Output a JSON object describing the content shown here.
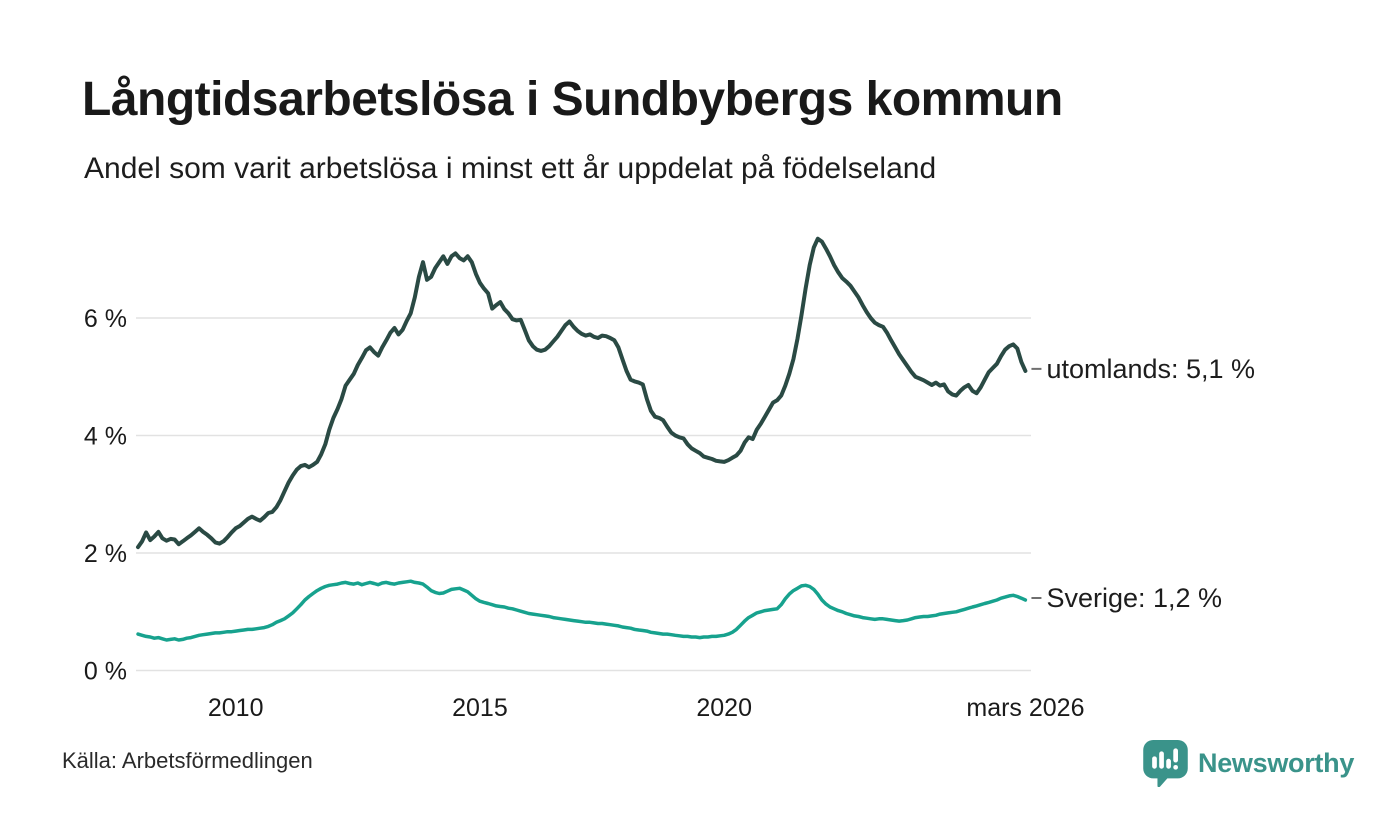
{
  "header": {
    "title": "Långtidsarbetslösa i Sundbybergs kommun",
    "subtitle": "Andel som varit arbetslösa i minst ett år uppdelat på födelseland"
  },
  "chart_data": {
    "type": "line",
    "title": "Långtidsarbetslösa i Sundbybergs kommun",
    "subtitle": "Andel som varit arbetslösa i minst ett år uppdelat på födelseland",
    "xlabel": "",
    "ylabel": "",
    "x_start": 2008.0,
    "x_step": 0.083333,
    "x_end": 2026.1667,
    "ylim": [
      0,
      7.6
    ],
    "grid": "horizontal-only",
    "grid_color": "#e2e2e2",
    "axis_text_color": "#1a1a1a",
    "label_text_color": "#1d1d1d",
    "connector_color": "#6f6f6f",
    "legend_position": "end-of-line-labels",
    "yticks": [
      {
        "value": 0,
        "label": "0 %"
      },
      {
        "value": 2,
        "label": "2 %"
      },
      {
        "value": 4,
        "label": "4 %"
      },
      {
        "value": 6,
        "label": "6 %"
      }
    ],
    "xticks": [
      {
        "value": 2010,
        "label": "2010"
      },
      {
        "value": 2015,
        "label": "2015"
      },
      {
        "value": 2020,
        "label": "2020"
      },
      {
        "value": 2026.1667,
        "label": "mars 2026"
      }
    ],
    "series": [
      {
        "name": "utomlands",
        "end_label": "utomlands: 5,1 %",
        "end_value": "5,1 %",
        "color": "#2a4a44",
        "values": [
          2.1,
          2.2,
          2.35,
          2.22,
          2.28,
          2.36,
          2.25,
          2.21,
          2.24,
          2.23,
          2.15,
          2.2,
          2.25,
          2.3,
          2.36,
          2.42,
          2.36,
          2.31,
          2.25,
          2.18,
          2.16,
          2.2,
          2.27,
          2.35,
          2.42,
          2.46,
          2.52,
          2.58,
          2.62,
          2.58,
          2.55,
          2.61,
          2.68,
          2.7,
          2.78,
          2.9,
          3.05,
          3.2,
          3.32,
          3.42,
          3.48,
          3.5,
          3.46,
          3.5,
          3.55,
          3.68,
          3.85,
          4.1,
          4.3,
          4.45,
          4.62,
          4.85,
          4.95,
          5.05,
          5.2,
          5.32,
          5.45,
          5.5,
          5.42,
          5.36,
          5.5,
          5.62,
          5.75,
          5.83,
          5.72,
          5.8,
          5.95,
          6.08,
          6.35,
          6.7,
          6.95,
          6.65,
          6.7,
          6.85,
          6.95,
          7.05,
          6.92,
          7.05,
          7.1,
          7.02,
          6.98,
          7.05,
          6.95,
          6.75,
          6.6,
          6.5,
          6.42,
          6.16,
          6.22,
          6.27,
          6.15,
          6.08,
          5.98,
          5.96,
          5.97,
          5.8,
          5.62,
          5.52,
          5.46,
          5.44,
          5.46,
          5.52,
          5.6,
          5.68,
          5.78,
          5.88,
          5.94,
          5.85,
          5.78,
          5.73,
          5.7,
          5.72,
          5.68,
          5.66,
          5.7,
          5.69,
          5.66,
          5.62,
          5.5,
          5.3,
          5.1,
          4.95,
          4.92,
          4.9,
          4.87,
          4.62,
          4.42,
          4.32,
          4.3,
          4.26,
          4.15,
          4.05,
          4.0,
          3.97,
          3.95,
          3.85,
          3.78,
          3.74,
          3.7,
          3.64,
          3.62,
          3.6,
          3.57,
          3.56,
          3.55,
          3.58,
          3.62,
          3.66,
          3.74,
          3.88,
          3.97,
          3.94,
          4.1,
          4.2,
          4.32,
          4.44,
          4.56,
          4.6,
          4.68,
          4.85,
          5.05,
          5.3,
          5.65,
          6.05,
          6.5,
          6.9,
          7.2,
          7.35,
          7.3,
          7.18,
          7.05,
          6.9,
          6.78,
          6.68,
          6.62,
          6.55,
          6.45,
          6.35,
          6.22,
          6.1,
          6.0,
          5.92,
          5.88,
          5.85,
          5.75,
          5.62,
          5.5,
          5.38,
          5.28,
          5.18,
          5.08,
          5.0,
          4.97,
          4.94,
          4.9,
          4.86,
          4.9,
          4.85,
          4.87,
          4.75,
          4.7,
          4.68,
          4.76,
          4.82,
          4.86,
          4.76,
          4.72,
          4.82,
          4.95,
          5.08,
          5.15,
          5.22,
          5.35,
          5.46,
          5.52,
          5.55,
          5.48,
          5.25,
          5.1
        ]
      },
      {
        "name": "Sverige",
        "end_label": "Sverige: 1,2 %",
        "end_value": "1,2 %",
        "color": "#17a28e",
        "values": [
          0.62,
          0.6,
          0.58,
          0.57,
          0.55,
          0.56,
          0.54,
          0.52,
          0.53,
          0.54,
          0.52,
          0.53,
          0.55,
          0.56,
          0.58,
          0.6,
          0.61,
          0.62,
          0.63,
          0.64,
          0.64,
          0.65,
          0.66,
          0.66,
          0.67,
          0.68,
          0.69,
          0.7,
          0.7,
          0.71,
          0.72,
          0.73,
          0.75,
          0.78,
          0.82,
          0.85,
          0.88,
          0.93,
          0.98,
          1.05,
          1.12,
          1.2,
          1.26,
          1.31,
          1.36,
          1.4,
          1.43,
          1.45,
          1.46,
          1.47,
          1.49,
          1.5,
          1.48,
          1.47,
          1.49,
          1.46,
          1.48,
          1.5,
          1.48,
          1.46,
          1.49,
          1.5,
          1.48,
          1.47,
          1.49,
          1.5,
          1.51,
          1.52,
          1.5,
          1.49,
          1.47,
          1.42,
          1.36,
          1.33,
          1.31,
          1.32,
          1.35,
          1.38,
          1.39,
          1.4,
          1.37,
          1.34,
          1.28,
          1.22,
          1.18,
          1.16,
          1.14,
          1.12,
          1.1,
          1.09,
          1.08,
          1.06,
          1.05,
          1.03,
          1.01,
          0.99,
          0.97,
          0.96,
          0.95,
          0.94,
          0.93,
          0.92,
          0.9,
          0.89,
          0.88,
          0.87,
          0.86,
          0.85,
          0.84,
          0.83,
          0.82,
          0.82,
          0.81,
          0.8,
          0.8,
          0.79,
          0.78,
          0.77,
          0.76,
          0.74,
          0.73,
          0.72,
          0.7,
          0.69,
          0.68,
          0.67,
          0.65,
          0.64,
          0.63,
          0.62,
          0.62,
          0.61,
          0.6,
          0.59,
          0.58,
          0.58,
          0.57,
          0.57,
          0.56,
          0.57,
          0.57,
          0.58,
          0.58,
          0.59,
          0.6,
          0.62,
          0.65,
          0.7,
          0.77,
          0.84,
          0.9,
          0.94,
          0.98,
          1.0,
          1.02,
          1.03,
          1.04,
          1.05,
          1.12,
          1.22,
          1.3,
          1.36,
          1.4,
          1.44,
          1.45,
          1.43,
          1.38,
          1.3,
          1.2,
          1.13,
          1.08,
          1.05,
          1.02,
          1.0,
          0.97,
          0.95,
          0.93,
          0.92,
          0.9,
          0.89,
          0.88,
          0.87,
          0.88,
          0.88,
          0.87,
          0.86,
          0.85,
          0.84,
          0.85,
          0.86,
          0.88,
          0.9,
          0.91,
          0.92,
          0.92,
          0.93,
          0.94,
          0.96,
          0.97,
          0.98,
          0.99,
          1.0,
          1.02,
          1.04,
          1.06,
          1.08,
          1.1,
          1.12,
          1.14,
          1.16,
          1.18,
          1.2,
          1.23,
          1.25,
          1.27,
          1.28,
          1.26,
          1.23,
          1.2
        ]
      }
    ]
  },
  "footer": {
    "source": "Källa: Arbetsförmedlingen",
    "brand": "Newsworthy",
    "brand_color": "#3a938a"
  }
}
